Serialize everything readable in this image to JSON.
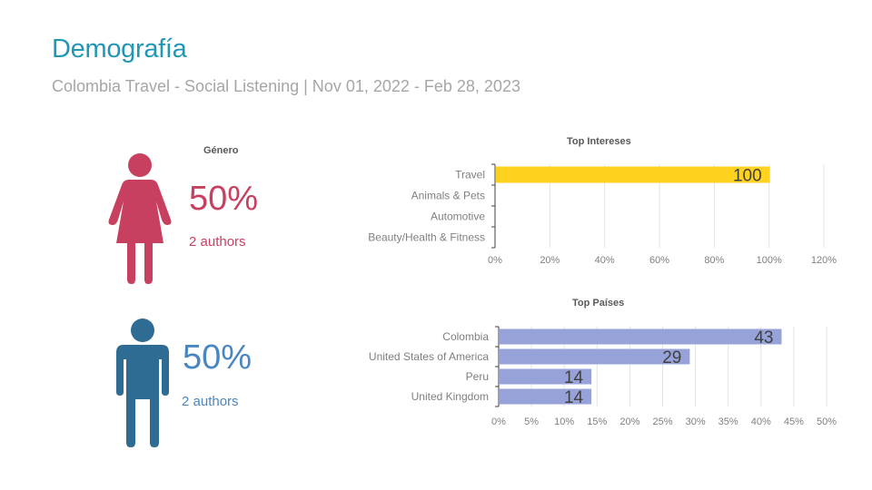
{
  "header": {
    "title": "Demografía",
    "subtitle": "Colombia Travel - Social Listening | Nov 01, 2022 - Feb 28, 2023"
  },
  "gender": {
    "title": "Género",
    "female": {
      "percent": "50%",
      "authors": "2 authors",
      "icon": "female-icon",
      "color": "#c8405f"
    },
    "male": {
      "percent": "50%",
      "authors": "2 authors",
      "icon": "male-icon",
      "color": "#2e6c93",
      "text_color": "#4a86c0"
    }
  },
  "chart_data": [
    {
      "type": "bar",
      "orientation": "horizontal",
      "title": "Top Intereses",
      "categories": [
        "Travel",
        "Animals & Pets",
        "Automotive",
        "Beauty/Health & Fitness"
      ],
      "values": [
        100,
        0,
        0,
        0
      ],
      "data_labels": [
        "100",
        "",
        "",
        ""
      ],
      "xlim": [
        0,
        120
      ],
      "ticks": [
        0,
        20,
        40,
        60,
        80,
        100,
        120
      ],
      "tick_labels": [
        "0%",
        "20%",
        "40%",
        "60%",
        "80%",
        "100%",
        "120%"
      ],
      "color": "#ffd21f",
      "grid": true
    },
    {
      "type": "bar",
      "orientation": "horizontal",
      "title": "Top Países",
      "categories": [
        "Colombia",
        "United States of America",
        "Peru",
        "United Kingdom"
      ],
      "values": [
        43,
        29,
        14,
        14
      ],
      "data_labels": [
        "43",
        "29",
        "14",
        "14"
      ],
      "xlim": [
        0,
        50
      ],
      "ticks": [
        0,
        5,
        10,
        15,
        20,
        25,
        30,
        35,
        40,
        45,
        50
      ],
      "tick_labels": [
        "0%",
        "5%",
        "10%",
        "15%",
        "20%",
        "25%",
        "30%",
        "35%",
        "40%",
        "45%",
        "50%"
      ],
      "color": "#97a3d8",
      "grid": true
    }
  ]
}
